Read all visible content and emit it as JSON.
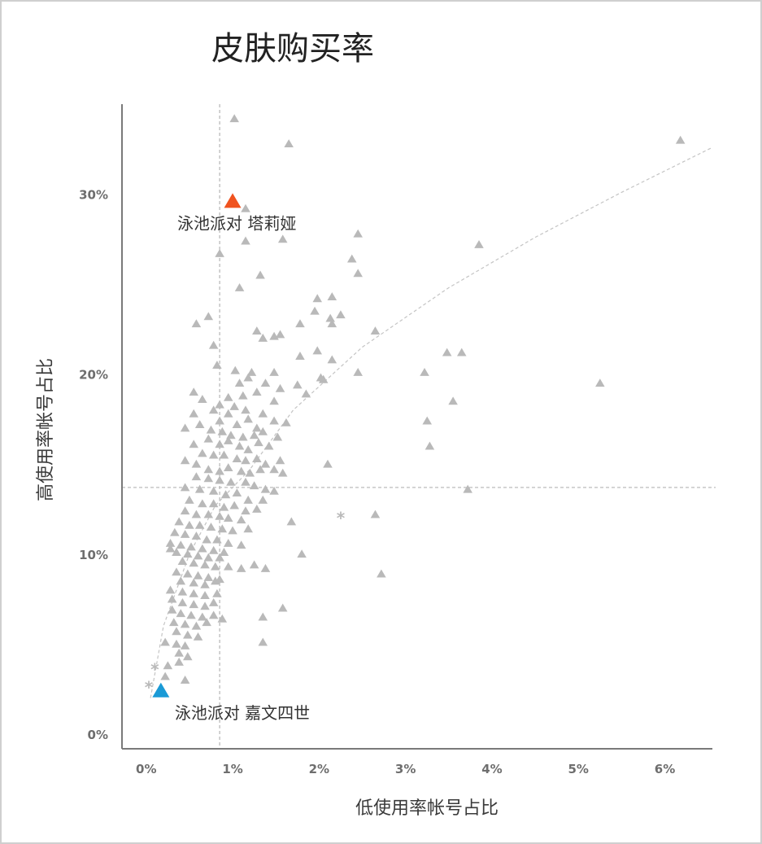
{
  "chart_data": {
    "type": "scatter",
    "title": "皮肤购买率",
    "xlabel": "低使用率帐号占比",
    "ylabel": "高使用率帐号占比",
    "xlim": [
      -0.0028,
      0.0655
    ],
    "ylim": [
      -0.0082,
      0.35
    ],
    "x_ticks": [
      0,
      0.01,
      0.02,
      0.03,
      0.04,
      0.05,
      0.06
    ],
    "x_tick_labels": [
      "0%",
      "1%",
      "2%",
      "3%",
      "4%",
      "5%",
      "6%"
    ],
    "y_ticks": [
      0,
      0.1,
      0.2,
      0.3
    ],
    "y_tick_labels": [
      "0%",
      "10%",
      "20%",
      "30%"
    ],
    "grid": false,
    "reference_lines": {
      "x": 0.0085,
      "y": 0.137
    },
    "colors": {
      "points": "#b9b9b9",
      "highlight_red": "#f0531f",
      "highlight_blue": "#1a9ad6",
      "trend": "#c4c4c4",
      "reflines": "#b5b5b5",
      "axis": "#7a7a7a"
    },
    "highlights": [
      {
        "label": "泳池派对 塔莉娅",
        "x": 0.01,
        "y": 0.296,
        "color": "#f0531f"
      },
      {
        "label": "泳池派对 嘉文四世",
        "x": 0.0017,
        "y": 0.024,
        "color": "#1a9ad6"
      }
    ],
    "trend_line": [
      [
        0.0005,
        0.02
      ],
      [
        0.002,
        0.06
      ],
      [
        0.005,
        0.1
      ],
      [
        0.008,
        0.127
      ],
      [
        0.012,
        0.147
      ],
      [
        0.017,
        0.18
      ],
      [
        0.025,
        0.215
      ],
      [
        0.035,
        0.248
      ],
      [
        0.045,
        0.276
      ],
      [
        0.055,
        0.301
      ],
      [
        0.0655,
        0.326
      ]
    ],
    "star_points": [
      [
        0.001,
        0.036
      ],
      [
        0.0003,
        0.026
      ],
      [
        0.0225,
        0.12
      ]
    ],
    "points": [
      [
        0.0102,
        0.342
      ],
      [
        0.0165,
        0.328
      ],
      [
        0.0618,
        0.33
      ],
      [
        0.0115,
        0.292
      ],
      [
        0.0245,
        0.278
      ],
      [
        0.0115,
        0.274
      ],
      [
        0.0158,
        0.275
      ],
      [
        0.0385,
        0.272
      ],
      [
        0.0085,
        0.267
      ],
      [
        0.0238,
        0.264
      ],
      [
        0.0245,
        0.256
      ],
      [
        0.0132,
        0.255
      ],
      [
        0.0108,
        0.248
      ],
      [
        0.0198,
        0.242
      ],
      [
        0.0215,
        0.243
      ],
      [
        0.0225,
        0.233
      ],
      [
        0.0195,
        0.235
      ],
      [
        0.0058,
        0.228
      ],
      [
        0.0072,
        0.232
      ],
      [
        0.0213,
        0.231
      ],
      [
        0.0215,
        0.228
      ],
      [
        0.0178,
        0.228
      ],
      [
        0.0265,
        0.224
      ],
      [
        0.0128,
        0.224
      ],
      [
        0.0148,
        0.221
      ],
      [
        0.0135,
        0.22
      ],
      [
        0.0155,
        0.222
      ],
      [
        0.0078,
        0.216
      ],
      [
        0.0198,
        0.213
      ],
      [
        0.0348,
        0.212
      ],
      [
        0.0365,
        0.212
      ],
      [
        0.0178,
        0.21
      ],
      [
        0.0215,
        0.208
      ],
      [
        0.0082,
        0.205
      ],
      [
        0.0103,
        0.202
      ],
      [
        0.0122,
        0.201
      ],
      [
        0.0148,
        0.201
      ],
      [
        0.0118,
        0.198
      ],
      [
        0.0245,
        0.201
      ],
      [
        0.0322,
        0.201
      ],
      [
        0.0202,
        0.198
      ],
      [
        0.0205,
        0.197
      ],
      [
        0.0525,
        0.195
      ],
      [
        0.0108,
        0.195
      ],
      [
        0.0138,
        0.195
      ],
      [
        0.0155,
        0.192
      ],
      [
        0.0175,
        0.194
      ],
      [
        0.0128,
        0.19
      ],
      [
        0.0112,
        0.188
      ],
      [
        0.0185,
        0.189
      ],
      [
        0.0095,
        0.187
      ],
      [
        0.0148,
        0.185
      ],
      [
        0.0355,
        0.185
      ],
      [
        0.0085,
        0.183
      ],
      [
        0.0102,
        0.182
      ],
      [
        0.0115,
        0.18
      ],
      [
        0.0135,
        0.178
      ],
      [
        0.0148,
        0.174
      ],
      [
        0.0162,
        0.173
      ],
      [
        0.0055,
        0.19
      ],
      [
        0.0065,
        0.186
      ],
      [
        0.0078,
        0.18
      ],
      [
        0.0095,
        0.178
      ],
      [
        0.0085,
        0.174
      ],
      [
        0.0105,
        0.172
      ],
      [
        0.0118,
        0.175
      ],
      [
        0.0128,
        0.17
      ],
      [
        0.0325,
        0.174
      ],
      [
        0.0055,
        0.178
      ],
      [
        0.0062,
        0.172
      ],
      [
        0.0075,
        0.169
      ],
      [
        0.0088,
        0.168
      ],
      [
        0.0098,
        0.166
      ],
      [
        0.0112,
        0.165
      ],
      [
        0.0125,
        0.166
      ],
      [
        0.0135,
        0.168
      ],
      [
        0.0152,
        0.165
      ],
      [
        0.0045,
        0.17
      ],
      [
        0.0072,
        0.164
      ],
      [
        0.0085,
        0.161
      ],
      [
        0.0095,
        0.163
      ],
      [
        0.0108,
        0.16
      ],
      [
        0.0118,
        0.158
      ],
      [
        0.013,
        0.162
      ],
      [
        0.0142,
        0.16
      ],
      [
        0.0328,
        0.16
      ],
      [
        0.0055,
        0.161
      ],
      [
        0.0065,
        0.156
      ],
      [
        0.0078,
        0.155
      ],
      [
        0.009,
        0.155
      ],
      [
        0.0105,
        0.153
      ],
      [
        0.0115,
        0.152
      ],
      [
        0.0128,
        0.153
      ],
      [
        0.0138,
        0.15
      ],
      [
        0.0155,
        0.152
      ],
      [
        0.0045,
        0.152
      ],
      [
        0.0058,
        0.15
      ],
      [
        0.0072,
        0.147
      ],
      [
        0.0085,
        0.146
      ],
      [
        0.0095,
        0.148
      ],
      [
        0.011,
        0.146
      ],
      [
        0.012,
        0.145
      ],
      [
        0.0132,
        0.147
      ],
      [
        0.0148,
        0.147
      ],
      [
        0.0158,
        0.145
      ],
      [
        0.021,
        0.15
      ],
      [
        0.0058,
        0.143
      ],
      [
        0.0072,
        0.142
      ],
      [
        0.0085,
        0.141
      ],
      [
        0.0098,
        0.14
      ],
      [
        0.0115,
        0.14
      ],
      [
        0.0125,
        0.138
      ],
      [
        0.0138,
        0.136
      ],
      [
        0.0148,
        0.135
      ],
      [
        0.0045,
        0.137
      ],
      [
        0.0062,
        0.136
      ],
      [
        0.0078,
        0.135
      ],
      [
        0.0092,
        0.133
      ],
      [
        0.0105,
        0.134
      ],
      [
        0.0118,
        0.13
      ],
      [
        0.0135,
        0.13
      ],
      [
        0.0372,
        0.136
      ],
      [
        0.005,
        0.13
      ],
      [
        0.0065,
        0.128
      ],
      [
        0.0078,
        0.128
      ],
      [
        0.009,
        0.126
      ],
      [
        0.0102,
        0.127
      ],
      [
        0.0115,
        0.124
      ],
      [
        0.0128,
        0.125
      ],
      [
        0.0045,
        0.124
      ],
      [
        0.0058,
        0.122
      ],
      [
        0.0072,
        0.122
      ],
      [
        0.0085,
        0.121
      ],
      [
        0.0095,
        0.12
      ],
      [
        0.011,
        0.119
      ],
      [
        0.0265,
        0.122
      ],
      [
        0.0038,
        0.118
      ],
      [
        0.005,
        0.116
      ],
      [
        0.0062,
        0.116
      ],
      [
        0.0075,
        0.115
      ],
      [
        0.0088,
        0.114
      ],
      [
        0.01,
        0.113
      ],
      [
        0.0118,
        0.114
      ],
      [
        0.0168,
        0.118
      ],
      [
        0.0033,
        0.112
      ],
      [
        0.0045,
        0.111
      ],
      [
        0.0058,
        0.11
      ],
      [
        0.007,
        0.108
      ],
      [
        0.0082,
        0.108
      ],
      [
        0.0095,
        0.106
      ],
      [
        0.011,
        0.105
      ],
      [
        0.0028,
        0.106
      ],
      [
        0.004,
        0.105
      ],
      [
        0.0052,
        0.104
      ],
      [
        0.0065,
        0.103
      ],
      [
        0.0078,
        0.102
      ],
      [
        0.009,
        0.101
      ],
      [
        0.0028,
        0.103
      ],
      [
        0.0035,
        0.101
      ],
      [
        0.0048,
        0.1
      ],
      [
        0.006,
        0.099
      ],
      [
        0.0072,
        0.098
      ],
      [
        0.0085,
        0.098
      ],
      [
        0.018,
        0.1
      ],
      [
        0.0042,
        0.096
      ],
      [
        0.0055,
        0.095
      ],
      [
        0.0068,
        0.094
      ],
      [
        0.008,
        0.093
      ],
      [
        0.0095,
        0.093
      ],
      [
        0.0125,
        0.094
      ],
      [
        0.0138,
        0.092
      ],
      [
        0.011,
        0.092
      ],
      [
        0.0272,
        0.089
      ],
      [
        0.0035,
        0.09
      ],
      [
        0.0048,
        0.089
      ],
      [
        0.006,
        0.088
      ],
      [
        0.0072,
        0.087
      ],
      [
        0.0085,
        0.086
      ],
      [
        0.004,
        0.085
      ],
      [
        0.0055,
        0.084
      ],
      [
        0.0068,
        0.083
      ],
      [
        0.008,
        0.085
      ],
      [
        0.0028,
        0.08
      ],
      [
        0.0042,
        0.079
      ],
      [
        0.0055,
        0.078
      ],
      [
        0.0068,
        0.077
      ],
      [
        0.0082,
        0.078
      ],
      [
        0.003,
        0.075
      ],
      [
        0.0042,
        0.073
      ],
      [
        0.0055,
        0.072
      ],
      [
        0.0068,
        0.071
      ],
      [
        0.0078,
        0.073
      ],
      [
        0.0158,
        0.07
      ],
      [
        0.003,
        0.069
      ],
      [
        0.004,
        0.067
      ],
      [
        0.0052,
        0.066
      ],
      [
        0.0065,
        0.065
      ],
      [
        0.0078,
        0.066
      ],
      [
        0.0088,
        0.064
      ],
      [
        0.0135,
        0.065
      ],
      [
        0.0032,
        0.062
      ],
      [
        0.0045,
        0.061
      ],
      [
        0.0058,
        0.06
      ],
      [
        0.007,
        0.062
      ],
      [
        0.0035,
        0.057
      ],
      [
        0.0048,
        0.055
      ],
      [
        0.006,
        0.054
      ],
      [
        0.0022,
        0.051
      ],
      [
        0.0035,
        0.05
      ],
      [
        0.0045,
        0.049
      ],
      [
        0.0135,
        0.051
      ],
      [
        0.0038,
        0.045
      ],
      [
        0.0048,
        0.043
      ],
      [
        0.0025,
        0.038
      ],
      [
        0.0038,
        0.04
      ],
      [
        0.0045,
        0.03
      ],
      [
        0.0022,
        0.032
      ]
    ]
  }
}
